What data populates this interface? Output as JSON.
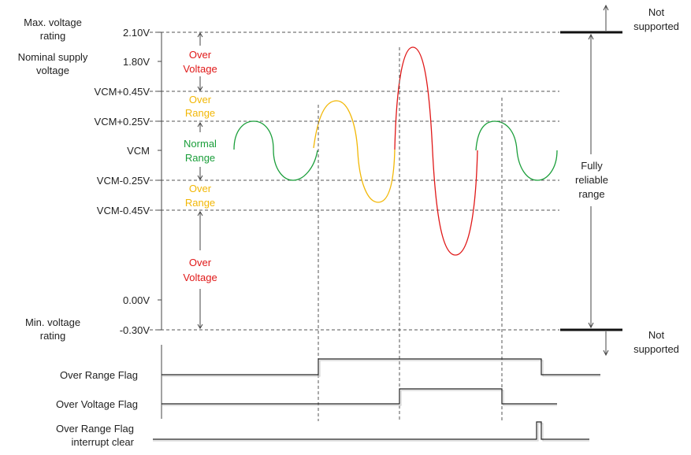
{
  "colors": {
    "normal": "#1a9e3a",
    "over_range": "#f2b705",
    "over_voltage": "#e01818"
  },
  "axis_labels": {
    "v_2_10": "2.10V",
    "v_1_80": "1.80V",
    "vcm_p045": "VCM+0.45V",
    "vcm_p025": "VCM+0.25V",
    "vcm": "VCM",
    "vcm_m025": "VCM-0.25V",
    "vcm_m045": "VCM-0.45V",
    "v_0_00": "0.00V",
    "v_m030": "-0.30V"
  },
  "left_labels": {
    "max_rating_1": "Max. voltage",
    "max_rating_2": "rating",
    "nominal_1": "Nominal supply",
    "nominal_2": "voltage",
    "min_rating_1": "Min. voltage",
    "min_rating_2": "rating"
  },
  "zones": {
    "over_voltage_top_1": "Over",
    "over_voltage_top_2": "Voltage",
    "over_range_top_1": "Over",
    "over_range_top_2": "Range",
    "normal_1": "Normal",
    "normal_2": "Range",
    "over_range_bot_1": "Over",
    "over_range_bot_2": "Range",
    "over_voltage_bot_1": "Over",
    "over_voltage_bot_2": "Voltage"
  },
  "right_labels": {
    "not_supported_top_1": "Not",
    "not_supported_top_2": "supported",
    "fully_1": "Fully",
    "fully_2": "reliable",
    "fully_3": "range",
    "not_supported_bot_1": "Not",
    "not_supported_bot_2": "supported"
  },
  "flags": {
    "over_range": "Over Range Flag",
    "over_voltage": "Over Voltage Flag",
    "interrupt_1": "Over Range Flag",
    "interrupt_2": "interrupt clear"
  }
}
